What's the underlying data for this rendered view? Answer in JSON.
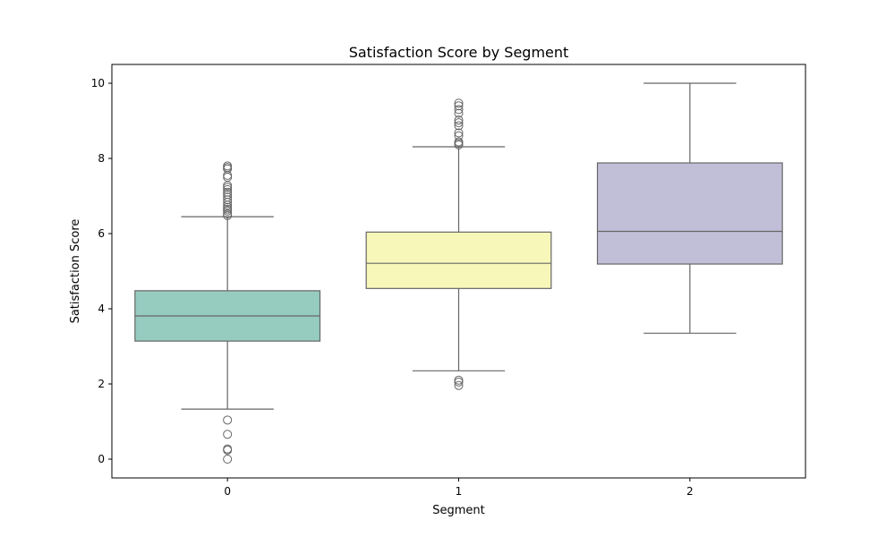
{
  "chart_data": {
    "type": "box",
    "title": "Satisfaction Score by Segment",
    "xlabel": "Segment",
    "ylabel": "Satisfaction Score",
    "categories": [
      "0",
      "1",
      "2"
    ],
    "ylim": [
      -0.5,
      10.5
    ],
    "yticks": [
      0,
      2,
      4,
      6,
      8,
      10
    ],
    "grid": false,
    "colors": {
      "box_fills": [
        "#96cbc0",
        "#f7f7ba",
        "#c1bed8"
      ],
      "line": "#666666",
      "frame": "#000000"
    },
    "boxes": [
      {
        "category": "0",
        "whisker_low": 1.33,
        "q1": 3.14,
        "median": 3.81,
        "q3": 4.48,
        "whisker_high": 6.45,
        "outliers": [
          0.0,
          0.24,
          0.27,
          0.66,
          1.04,
          6.48,
          6.53,
          6.6,
          6.65,
          6.7,
          6.76,
          6.83,
          6.9,
          6.97,
          7.04,
          7.1,
          7.17,
          7.23,
          7.28,
          7.5,
          7.55,
          7.72,
          7.76,
          7.8
        ]
      },
      {
        "category": "1",
        "whisker_low": 2.35,
        "q1": 4.54,
        "median": 5.21,
        "q3": 6.04,
        "whisker_high": 8.31,
        "outliers": [
          1.96,
          2.05,
          2.1,
          8.36,
          8.4,
          8.44,
          8.6,
          8.68,
          8.87,
          8.95,
          9.02,
          9.2,
          9.3,
          9.4,
          9.47
        ]
      },
      {
        "category": "2",
        "whisker_low": 3.35,
        "q1": 5.19,
        "median": 6.06,
        "q3": 7.88,
        "whisker_high": 10.0,
        "outliers": []
      }
    ]
  }
}
